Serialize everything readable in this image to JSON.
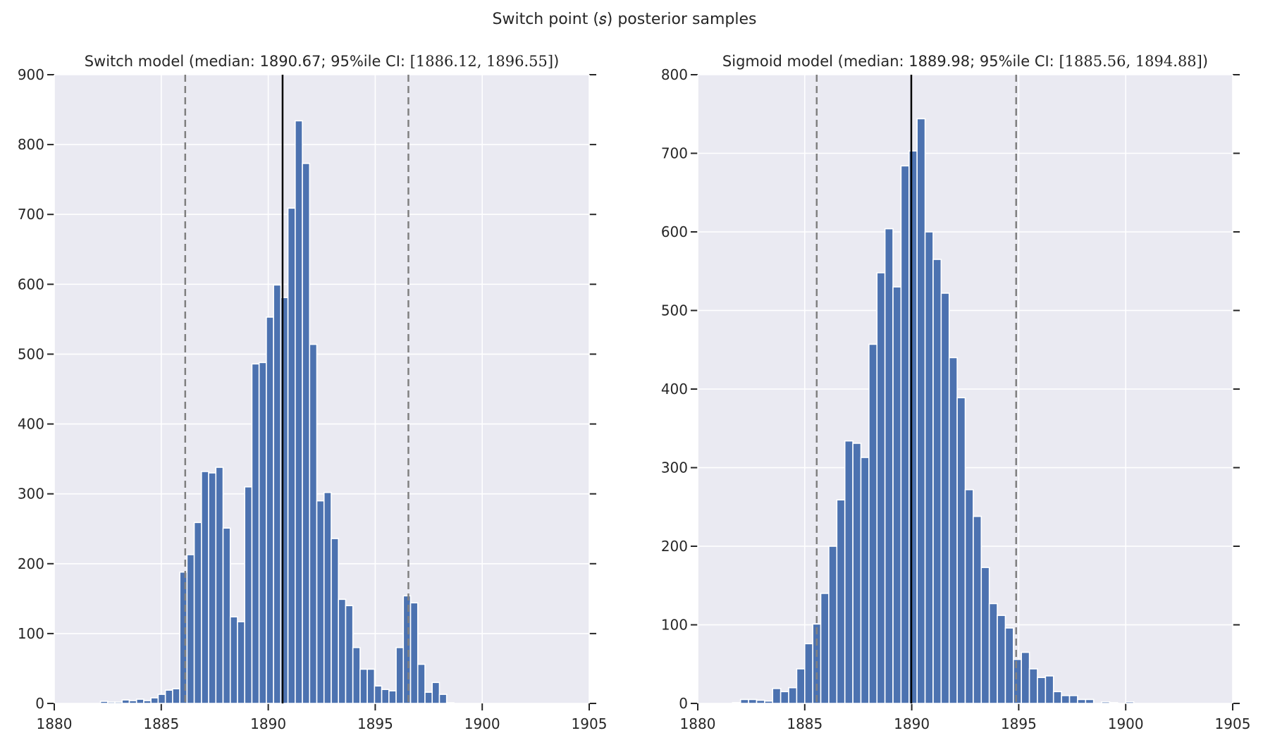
{
  "suptitle": "Switch point (𝑠) posterior samples",
  "colors": {
    "bar": "#4c72b0",
    "background": "#eaeaf2",
    "grid": "#ffffff",
    "median_line": "#000000",
    "ci_line": "#808080"
  },
  "chart_data": [
    {
      "type": "bar",
      "title_prefix": "Switch model (median: 1890.67; 95%ile CI: ",
      "title_ci": "[1886.12, 1896.55]",
      "title_suffix": ")",
      "xlim": [
        1880,
        1905
      ],
      "ylim": [
        0,
        900
      ],
      "xticks": [
        1880,
        1885,
        1890,
        1895,
        1900,
        1905
      ],
      "yticks": [
        0,
        100,
        200,
        300,
        400,
        500,
        600,
        700,
        800,
        900
      ],
      "grid": true,
      "bin_start": 1882.16,
      "bin_width": 0.337,
      "values": [
        3,
        2,
        2,
        5,
        4,
        6,
        4,
        8,
        13,
        19,
        21,
        188,
        213,
        259,
        332,
        330,
        338,
        251,
        124,
        117,
        310,
        486,
        488,
        553,
        599,
        581,
        709,
        834,
        773,
        514,
        290,
        302,
        236,
        149,
        140,
        80,
        49,
        49,
        25,
        20,
        18,
        80,
        154,
        144,
        56,
        16,
        30,
        13,
        1,
        0
      ],
      "median": 1890.67,
      "ci": [
        1886.12,
        1896.55
      ]
    },
    {
      "type": "bar",
      "title_prefix": "Sigmoid model (median: 1889.98; 95%ile CI: ",
      "title_ci": "[1885.56, 1894.88]",
      "title_suffix": ")",
      "xlim": [
        1880,
        1905
      ],
      "ylim": [
        0,
        800
      ],
      "xticks": [
        1880,
        1885,
        1890,
        1895,
        1900,
        1905
      ],
      "yticks": [
        0,
        100,
        200,
        300,
        400,
        500,
        600,
        700,
        800
      ],
      "grid": true,
      "bin_start": 1881.625,
      "bin_width": 0.375,
      "values": [
        1,
        5,
        5,
        4,
        3,
        19,
        15,
        20,
        44,
        76,
        101,
        140,
        200,
        259,
        334,
        331,
        313,
        457,
        548,
        604,
        530,
        684,
        703,
        744,
        600,
        565,
        522,
        440,
        389,
        272,
        238,
        173,
        127,
        112,
        96,
        56,
        65,
        44,
        33,
        35,
        15,
        10,
        10,
        5,
        5,
        0,
        2,
        1,
        0,
        2
      ],
      "median": 1889.98,
      "ci": [
        1885.56,
        1894.88
      ]
    }
  ]
}
